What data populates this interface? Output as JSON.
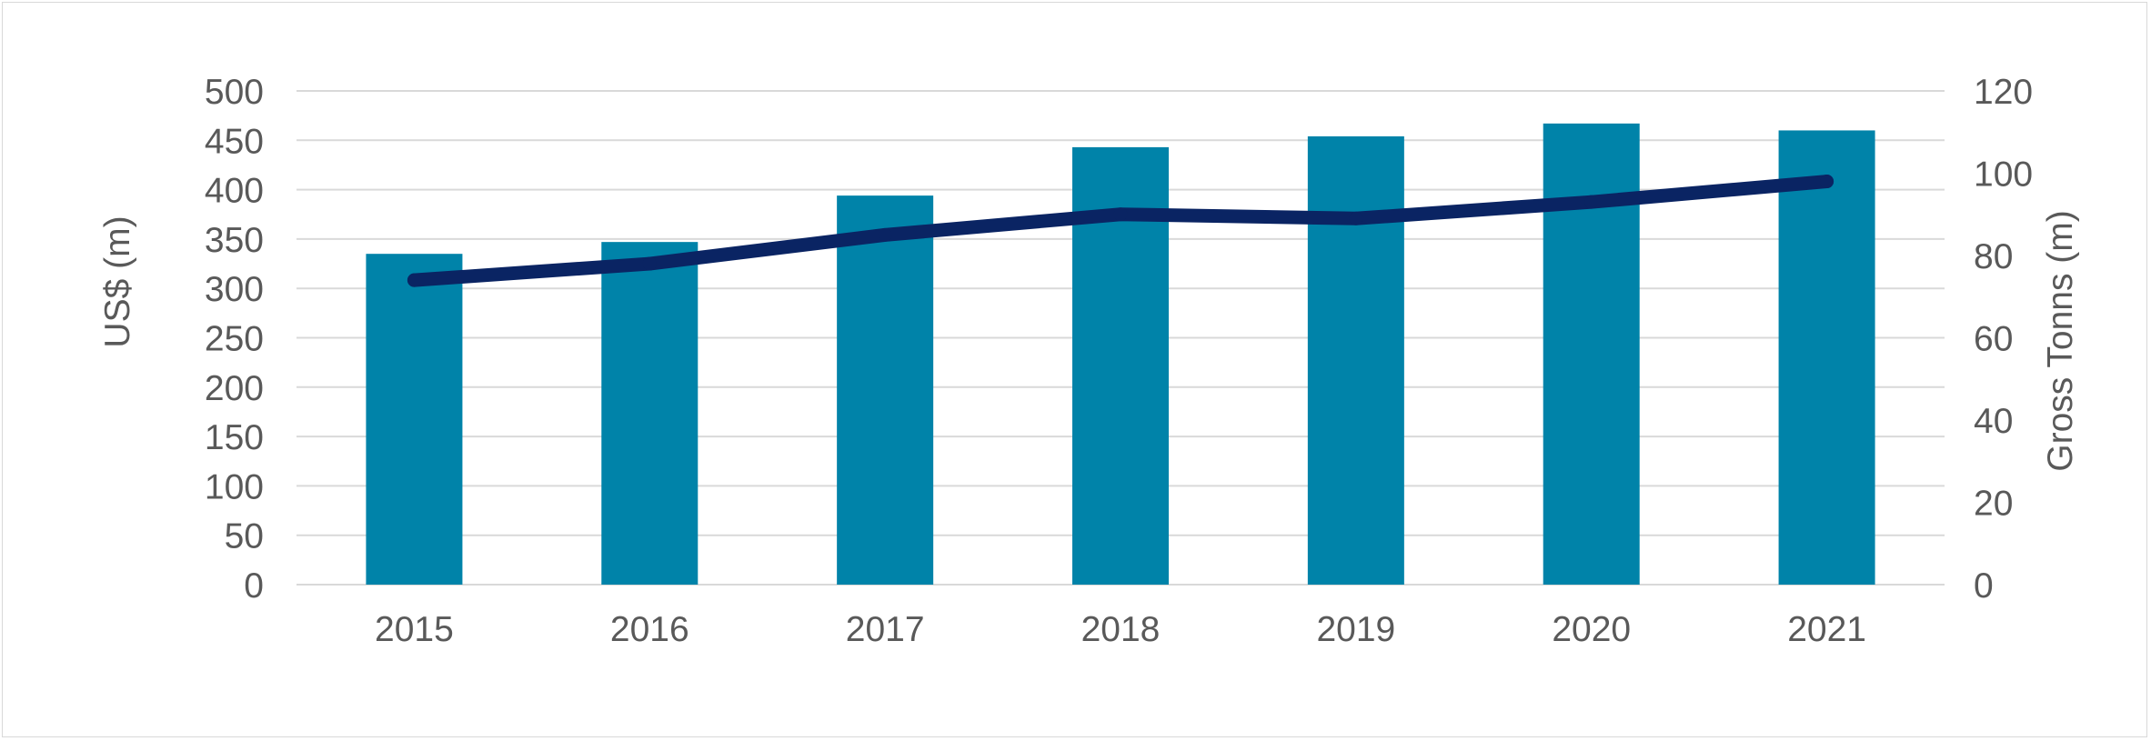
{
  "chart_data": {
    "type": "bar+line",
    "categories": [
      "2015",
      "2016",
      "2017",
      "2018",
      "2019",
      "2020",
      "2021"
    ],
    "series": [
      {
        "type": "bar",
        "axis": "left",
        "color": "#0083a9",
        "values": [
          335,
          347,
          394,
          443,
          454,
          467,
          460
        ]
      },
      {
        "type": "line",
        "axis": "right",
        "color": "#0a2463",
        "values": [
          74,
          78,
          85,
          90,
          89,
          93,
          98
        ]
      }
    ],
    "ylabel": "US$  (m)",
    "ylabel_right": "Gross Tonns (m)",
    "ylim": [
      0,
      500
    ],
    "ylim_right": [
      0,
      120
    ],
    "yticks": [
      "0",
      "50",
      "100",
      "150",
      "200",
      "250",
      "300",
      "350",
      "400",
      "450",
      "500"
    ],
    "yticks_right": [
      "0",
      "20",
      "40",
      "60",
      "80",
      "100",
      "120"
    ],
    "grid": true,
    "legend": "none"
  }
}
